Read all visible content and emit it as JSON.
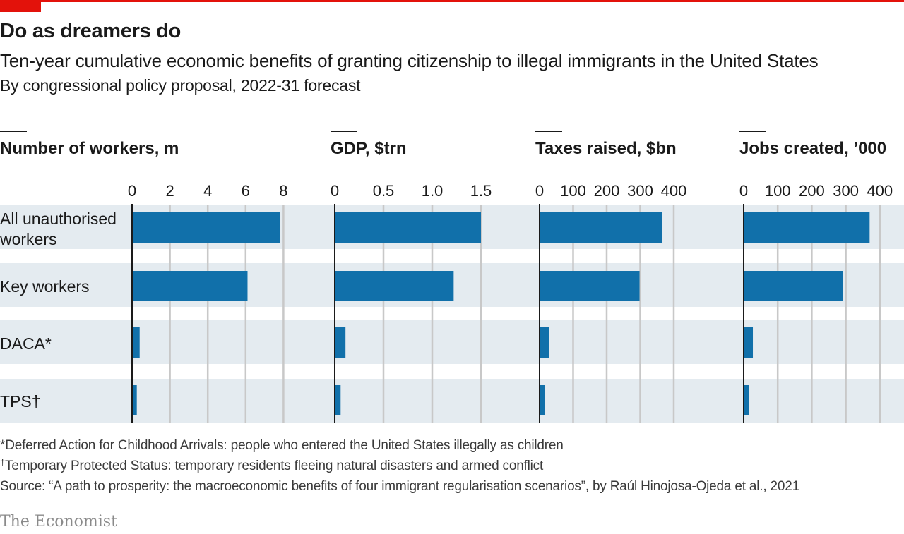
{
  "header": {
    "title": "Do as dreamers do",
    "subtitle": "Ten-year cumulative economic benefits of granting citizenship to illegal immigrants in the United States",
    "subtitle2": "By congressional policy proposal, 2022-31 forecast"
  },
  "footnotes": {
    "daca": "*Deferred Action for Childhood Arrivals: people who entered the United States illegally as children",
    "tps_mark": "†",
    "tps": "Temporary Protected Status: temporary residents fleeing natural disasters and armed conflict",
    "source": "Source: “A path to prosperity: the macroeconomic benefits of four immigrant regularisation scenarios”, by Raúl Hinojosa-Ojeda et al., 2021"
  },
  "logo": "The Economist",
  "colors": {
    "bar": "#1170aa",
    "band": "#e4ebf0",
    "accent": "#e3120b",
    "grid": "#c8c8c8",
    "axis": "#1a1a1a"
  },
  "chart_data": {
    "type": "bar",
    "orientation": "horizontal",
    "categories": [
      "All unauthorised workers",
      "Key workers",
      "DACA*",
      "TPS†"
    ],
    "panels": [
      {
        "title": "Number of workers, m",
        "ticks": [
          "0",
          "2",
          "4",
          "6",
          "8"
        ],
        "xlim": [
          0,
          8
        ],
        "values": [
          7.8,
          6.1,
          0.4,
          0.25
        ]
      },
      {
        "title": "GDP, $trn",
        "ticks": [
          "0",
          "0.5",
          "1.0",
          "1.5"
        ],
        "xlim": [
          0,
          1.5
        ],
        "values": [
          1.5,
          1.22,
          0.11,
          0.06
        ]
      },
      {
        "title": "Taxes raised, $bn",
        "ticks": [
          "0",
          "100",
          "200",
          "300",
          "400"
        ],
        "xlim": [
          0,
          400
        ],
        "values": [
          365,
          298,
          28,
          16
        ]
      },
      {
        "title": "Jobs created, ’000",
        "ticks": [
          "0",
          "100",
          "200",
          "300",
          "400"
        ],
        "xlim": [
          0,
          400
        ],
        "values": [
          370,
          292,
          27,
          15
        ]
      }
    ],
    "grid": true
  }
}
